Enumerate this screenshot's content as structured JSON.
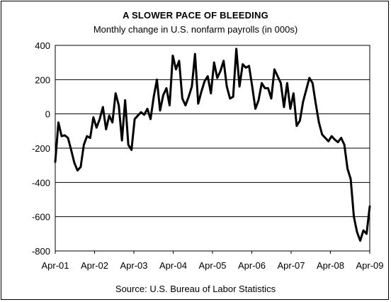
{
  "chart_data": {
    "type": "line",
    "title": "A SLOWER PACE OF BLEEDING",
    "subtitle": "Monthly change in U.S. nonfarm payrolls (in 000s)",
    "source": "Source: U.S. Bureau of Labor Statistics",
    "xlabel": "",
    "ylabel": "",
    "ylim": [
      -800,
      400
    ],
    "y_ticks": [
      "400",
      "200",
      "0",
      "-200",
      "-400",
      "-600",
      "-800"
    ],
    "y_tick_values": [
      400,
      200,
      0,
      -200,
      -400,
      -600,
      -800
    ],
    "x_tick_labels": [
      "Apr-01",
      "Apr-02",
      "Apr-03",
      "Apr-04",
      "Apr-05",
      "Apr-06",
      "Apr-07",
      "Apr-08",
      "Apr-09"
    ],
    "grid": true,
    "series": [
      {
        "start": "Apr-01",
        "end": "Apr-09",
        "frequency": "monthly",
        "color": "#000000",
        "values": [
          -280,
          -50,
          -130,
          -125,
          -140,
          -210,
          -285,
          -330,
          -310,
          -180,
          -130,
          -140,
          -20,
          -80,
          -30,
          40,
          -90,
          -10,
          -50,
          120,
          50,
          -155,
          80,
          -180,
          -210,
          -30,
          -10,
          10,
          -5,
          30,
          -30,
          100,
          200,
          20,
          110,
          150,
          50,
          340,
          260,
          310,
          90,
          50,
          100,
          160,
          350,
          60,
          130,
          190,
          220,
          120,
          300,
          210,
          250,
          310,
          160,
          90,
          100,
          380,
          160,
          290,
          270,
          280,
          160,
          30,
          80,
          180,
          150,
          150,
          90,
          260,
          220,
          180,
          40,
          180,
          30,
          120,
          -70,
          -40,
          70,
          140,
          210,
          180,
          60,
          -50,
          -120,
          -140,
          -160,
          -130,
          -150,
          -165,
          -140,
          -180,
          -320,
          -380,
          -600,
          -690,
          -740,
          -680,
          -700,
          -540
        ]
      }
    ]
  }
}
